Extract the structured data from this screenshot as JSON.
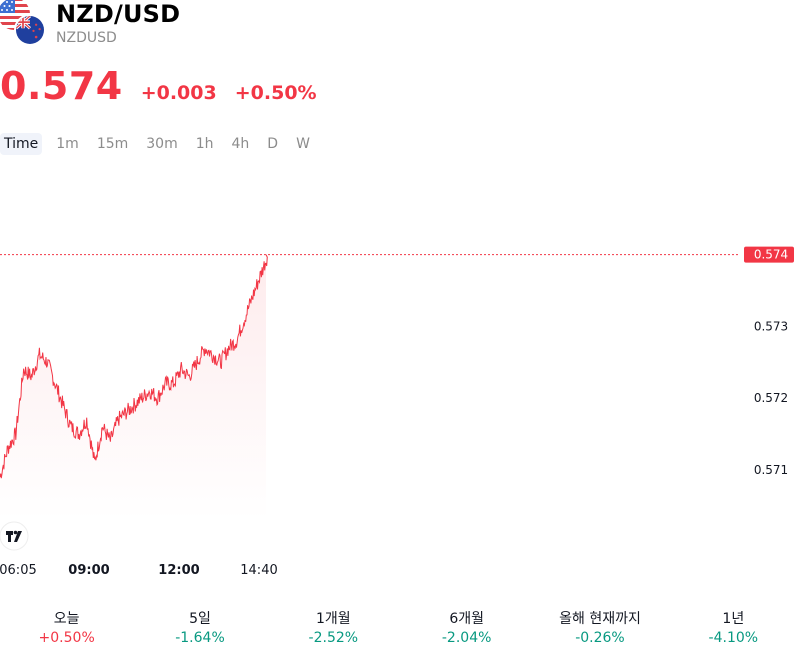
{
  "header": {
    "title": "NZD/USD",
    "subtitle": "NZDUSD"
  },
  "quote": {
    "price": "0.574",
    "change": "+0.003",
    "change_percent": "+0.50%"
  },
  "intervals": [
    {
      "label": "Time",
      "active": true
    },
    {
      "label": "1m",
      "active": false
    },
    {
      "label": "15m",
      "active": false
    },
    {
      "label": "30m",
      "active": false
    },
    {
      "label": "1h",
      "active": false
    },
    {
      "label": "4h",
      "active": false
    },
    {
      "label": "D",
      "active": false
    },
    {
      "label": "W",
      "active": false
    }
  ],
  "chart_data": {
    "type": "area",
    "y_ticks": [
      "0.573",
      "0.572",
      "0.571"
    ],
    "y_tick_values": [
      0.573,
      0.572,
      0.571
    ],
    "last_price_label": "0.574",
    "last_price_value": 0.574,
    "ylim": [
      0.5703,
      0.5749
    ],
    "x_ticks": [
      {
        "label": "06:05",
        "bold": false
      },
      {
        "label": "09:00",
        "bold": true
      },
      {
        "label": "12:00",
        "bold": true
      },
      {
        "label": "14:40",
        "bold": false
      }
    ],
    "x": [
      "06:05",
      "06:20",
      "06:35",
      "06:50",
      "07:05",
      "07:20",
      "07:35",
      "07:50",
      "08:05",
      "08:20",
      "08:35",
      "08:50",
      "09:05",
      "09:20",
      "09:35",
      "09:50",
      "10:05",
      "10:20",
      "10:35",
      "10:50",
      "11:05",
      "11:20",
      "11:35",
      "11:50",
      "12:05",
      "12:20",
      "12:35",
      "12:50",
      "13:05",
      "13:20",
      "13:35",
      "13:50",
      "14:05",
      "14:20",
      "14:40"
    ],
    "series": [
      {
        "values": [
          0.5709,
          0.5713,
          0.5715,
          0.5724,
          0.5723,
          0.5726,
          0.5725,
          0.5722,
          0.5719,
          0.5716,
          0.5715,
          0.5717,
          0.5711,
          0.5716,
          0.5714,
          0.5717,
          0.5718,
          0.5719,
          0.572,
          0.5721,
          0.572,
          0.5722,
          0.5722,
          0.5724,
          0.5723,
          0.5725,
          0.5727,
          0.5726,
          0.5725,
          0.5727,
          0.5728,
          0.5731,
          0.5734,
          0.5737,
          0.574
        ]
      }
    ],
    "line_color": "#f23645"
  },
  "periods": [
    {
      "label": "오늘",
      "value": "+0.50%",
      "dir": "pos"
    },
    {
      "label": "5일",
      "value": "-1.64%",
      "dir": "neg"
    },
    {
      "label": "1개월",
      "value": "-2.52%",
      "dir": "neg"
    },
    {
      "label": "6개월",
      "value": "-2.04%",
      "dir": "neg"
    },
    {
      "label": "올해 현재까지",
      "value": "-0.26%",
      "dir": "neg"
    },
    {
      "label": "1년",
      "value": "-4.10%",
      "dir": "neg"
    }
  ]
}
